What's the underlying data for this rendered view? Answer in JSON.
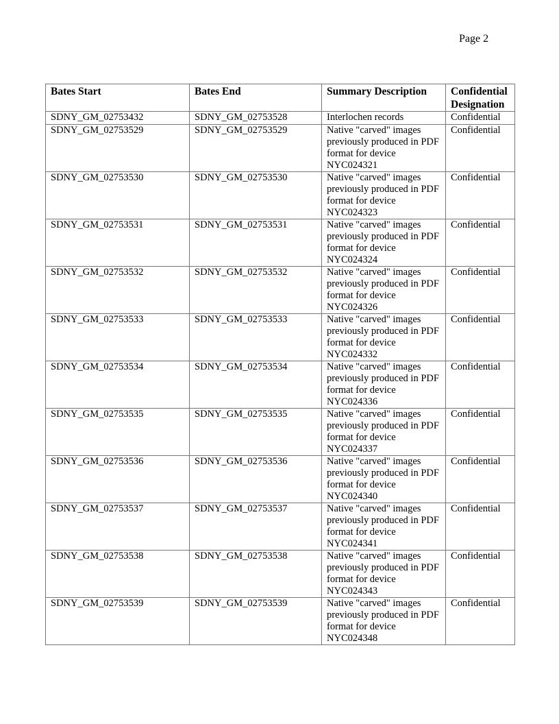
{
  "page_label": "Page 2",
  "table": {
    "headers": [
      "Bates Start",
      "Bates End",
      "Summary Description",
      "Confidential Designation"
    ],
    "rows": [
      {
        "start": "SDNY_GM_02753432",
        "end": "SDNY_GM_02753528",
        "description": "Interlochen records",
        "designation": "Confidential"
      },
      {
        "start": "SDNY_GM_02753529",
        "end": "SDNY_GM_02753529",
        "description": "Native \"carved\" images previously produced in PDF format for device NYC024321",
        "designation": "Confidential"
      },
      {
        "start": "SDNY_GM_02753530",
        "end": "SDNY_GM_02753530",
        "description": "Native \"carved\" images previously produced in PDF format for device NYC024323",
        "designation": "Confidential"
      },
      {
        "start": "SDNY_GM_02753531",
        "end": "SDNY_GM_02753531",
        "description": "Native \"carved\" images previously produced in PDF format for device NYC024324",
        "designation": "Confidential"
      },
      {
        "start": "SDNY_GM_02753532",
        "end": "SDNY_GM_02753532",
        "description": "Native \"carved\" images previously produced in PDF format for device NYC024326",
        "designation": "Confidential"
      },
      {
        "start": "SDNY_GM_02753533",
        "end": "SDNY_GM_02753533",
        "description": "Native \"carved\" images previously produced in PDF format for device NYC024332",
        "designation": "Confidential"
      },
      {
        "start": "SDNY_GM_02753534",
        "end": "SDNY_GM_02753534",
        "description": "Native \"carved\" images previously produced in PDF format for device NYC024336",
        "designation": "Confidential"
      },
      {
        "start": "SDNY_GM_02753535",
        "end": "SDNY_GM_02753535",
        "description": "Native \"carved\" images previously produced in PDF format for device NYC024337",
        "designation": "Confidential"
      },
      {
        "start": "SDNY_GM_02753536",
        "end": "SDNY_GM_02753536",
        "description": "Native \"carved\" images previously produced in PDF format for device NYC024340",
        "designation": "Confidential"
      },
      {
        "start": "SDNY_GM_02753537",
        "end": "SDNY_GM_02753537",
        "description": "Native \"carved\" images previously produced in PDF format for device NYC024341",
        "designation": "Confidential"
      },
      {
        "start": "SDNY_GM_02753538",
        "end": "SDNY_GM_02753538",
        "description": "Native \"carved\" images previously produced in PDF format for device NYC024343",
        "designation": "Confidential"
      },
      {
        "start": "SDNY_GM_02753539",
        "end": "SDNY_GM_02753539",
        "description": "Native \"carved\" images previously produced in PDF format for device NYC024348",
        "designation": "Confidential"
      }
    ]
  }
}
